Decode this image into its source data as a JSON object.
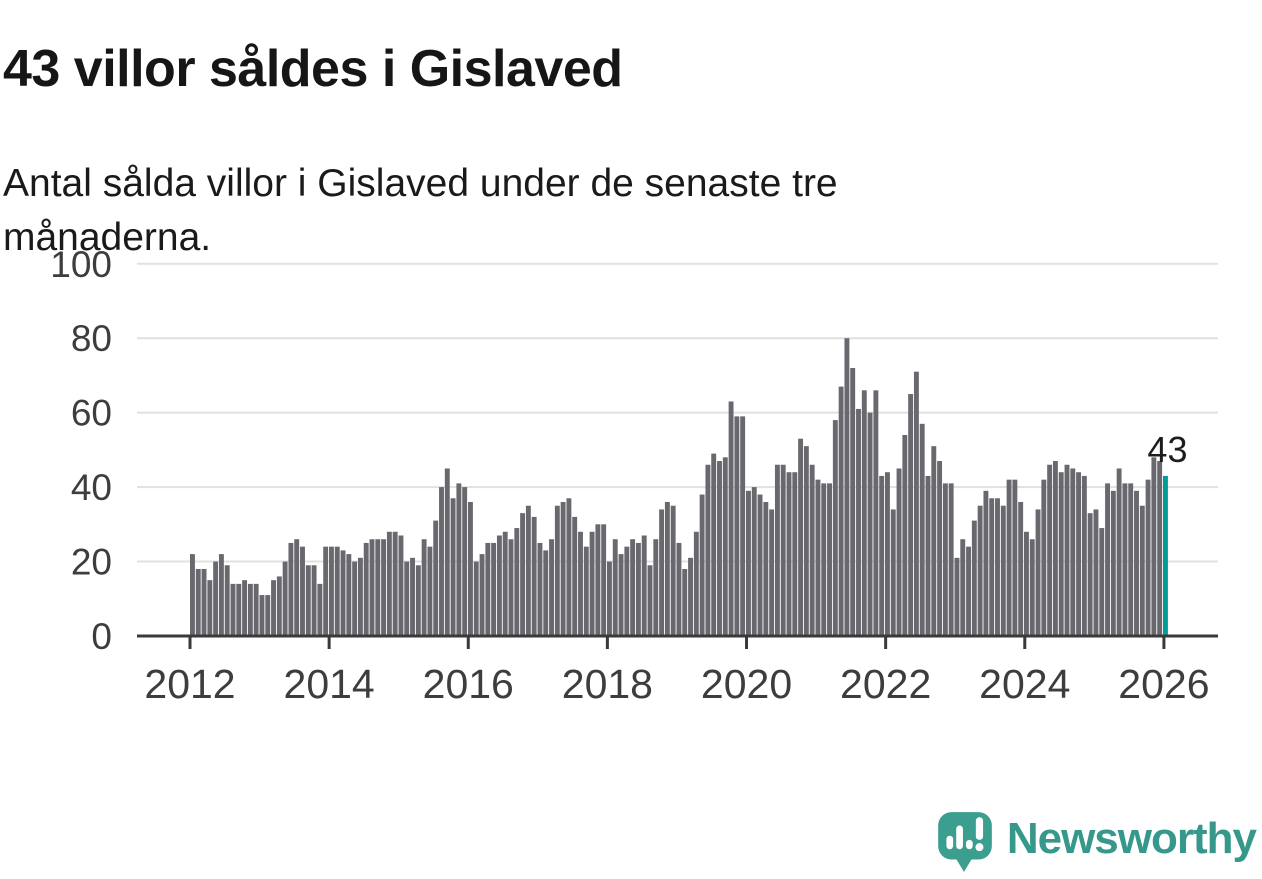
{
  "header": {
    "title": "43 villor såldes i Gislaved",
    "subtitle": "Antal sålda villor i Gislaved under de senaste tre månaderna."
  },
  "chart_data": {
    "type": "bar",
    "title": "43 villor såldes i Gislaved",
    "subtitle": "Antal sålda villor i Gislaved under de senaste tre månaderna.",
    "x_unit": "month",
    "x_start": "2012-01",
    "x_end": "2026-01",
    "x_tick_labels": [
      "2012",
      "2014",
      "2016",
      "2018",
      "2020",
      "2022",
      "2024",
      "2026"
    ],
    "y_ticks": [
      0,
      20,
      40,
      60,
      80,
      100
    ],
    "ylim": [
      0,
      100
    ],
    "grid": "horizontal",
    "legend": "none",
    "annotation": {
      "text": "43",
      "position": "above-last-bar"
    },
    "colors": {
      "bar": "#69686f",
      "highlight": "#009c98",
      "axis_line": "#3a3a3a",
      "grid_line": "#e1e1e1",
      "tick_text": "#3d3d3d",
      "annotation_text": "#1c1c1c"
    },
    "highlight_index": "last",
    "values": [
      22,
      18,
      18,
      15,
      20,
      22,
      19,
      14,
      14,
      15,
      14,
      14,
      11,
      11,
      15,
      16,
      20,
      25,
      26,
      24,
      19,
      19,
      14,
      24,
      24,
      24,
      23,
      22,
      20,
      21,
      25,
      26,
      26,
      26,
      28,
      28,
      27,
      20,
      21,
      19,
      26,
      24,
      31,
      40,
      45,
      37,
      41,
      40,
      36,
      20,
      22,
      25,
      25,
      27,
      28,
      26,
      29,
      33,
      35,
      32,
      25,
      23,
      26,
      35,
      36,
      37,
      32,
      28,
      24,
      28,
      30,
      30,
      20,
      26,
      22,
      24,
      26,
      25,
      27,
      19,
      26,
      34,
      36,
      35,
      25,
      18,
      21,
      28,
      38,
      46,
      49,
      47,
      48,
      63,
      59,
      59,
      39,
      40,
      38,
      36,
      34,
      46,
      46,
      44,
      44,
      53,
      51,
      46,
      42,
      41,
      41,
      58,
      67,
      80,
      72,
      61,
      66,
      60,
      66,
      43,
      44,
      34,
      45,
      54,
      65,
      71,
      57,
      43,
      51,
      47,
      41,
      41,
      21,
      26,
      24,
      31,
      35,
      39,
      37,
      37,
      35,
      42,
      42,
      36,
      28,
      26,
      34,
      42,
      46,
      47,
      44,
      46,
      45,
      44,
      43,
      33,
      34,
      29,
      41,
      39,
      45,
      41,
      41,
      39,
      35,
      42,
      48,
      47,
      43
    ]
  },
  "logo": {
    "wordmark": "Newsworthy",
    "icon": "newsworthy-speech-bubble-bars-icon",
    "color": "#35988b"
  }
}
